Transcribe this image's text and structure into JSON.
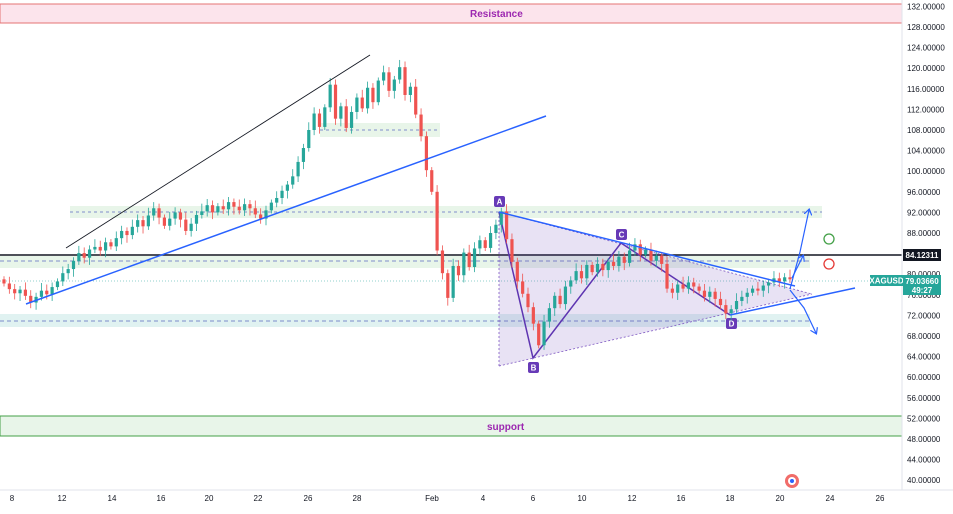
{
  "chart_data": {
    "type": "candlestick",
    "symbol": "XAGUSD",
    "current_price": "79.03660",
    "countdown": "49:27",
    "level_price": "84.12311",
    "ylim": [
      39,
      131
    ],
    "y_ticks": [
      "40.00000",
      "44.00000",
      "48.00000",
      "52.00000",
      "56.00000",
      "60.00000",
      "64.00000",
      "68.00000",
      "72.00000",
      "76.00000",
      "80.00000",
      "84.00000",
      "88.00000",
      "92.00000",
      "96.00000",
      "100.00000",
      "104.00000",
      "108.00000",
      "112.00000",
      "116.00000",
      "120.00000",
      "124.00000",
      "128.00000",
      "132.00000"
    ],
    "x_ticks": [
      "8",
      "12",
      "14",
      "16",
      "20",
      "22",
      "26",
      "28",
      "Feb",
      "4",
      "6",
      "10",
      "12",
      "16",
      "18",
      "20",
      "24",
      "26"
    ],
    "zones": {
      "resistance": "Resistance",
      "support": "support"
    },
    "pattern_points": [
      "A",
      "B",
      "C",
      "D"
    ],
    "candles": [
      {
        "o": 79.0,
        "c": 78.2
      },
      {
        "o": 78.2,
        "c": 77.1
      },
      {
        "o": 77.1,
        "c": 76.3
      },
      {
        "o": 76.3,
        "c": 77.0
      },
      {
        "o": 77.0,
        "c": 75.8
      },
      {
        "o": 75.8,
        "c": 74.5
      },
      {
        "o": 74.5,
        "c": 75.6
      },
      {
        "o": 75.6,
        "c": 76.8
      },
      {
        "o": 76.8,
        "c": 76.1
      },
      {
        "o": 76.1,
        "c": 77.5
      },
      {
        "o": 77.5,
        "c": 78.6
      },
      {
        "o": 78.6,
        "c": 80.2
      },
      {
        "o": 80.2,
        "c": 81.0
      },
      {
        "o": 81.0,
        "c": 82.6
      },
      {
        "o": 82.6,
        "c": 84.1
      },
      {
        "o": 84.1,
        "c": 83.2
      },
      {
        "o": 83.2,
        "c": 84.8
      },
      {
        "o": 84.8,
        "c": 85.3
      },
      {
        "o": 85.3,
        "c": 84.6
      },
      {
        "o": 84.6,
        "c": 86.2
      },
      {
        "o": 86.2,
        "c": 85.4
      },
      {
        "o": 85.4,
        "c": 87.0
      },
      {
        "o": 87.0,
        "c": 88.4
      },
      {
        "o": 88.4,
        "c": 87.6
      },
      {
        "o": 87.6,
        "c": 89.2
      },
      {
        "o": 89.2,
        "c": 90.5
      },
      {
        "o": 90.5,
        "c": 89.3
      },
      {
        "o": 89.3,
        "c": 91.4
      },
      {
        "o": 91.4,
        "c": 92.8
      },
      {
        "o": 92.8,
        "c": 91.0
      },
      {
        "o": 91.0,
        "c": 89.4
      },
      {
        "o": 89.4,
        "c": 90.8
      },
      {
        "o": 90.8,
        "c": 92.0
      },
      {
        "o": 92.0,
        "c": 90.6
      },
      {
        "o": 90.6,
        "c": 88.4
      },
      {
        "o": 88.4,
        "c": 89.8
      },
      {
        "o": 89.8,
        "c": 91.5
      },
      {
        "o": 91.5,
        "c": 92.2
      },
      {
        "o": 92.2,
        "c": 93.4
      },
      {
        "o": 93.4,
        "c": 92.0
      },
      {
        "o": 92.0,
        "c": 93.2
      },
      {
        "o": 93.2,
        "c": 92.6
      },
      {
        "o": 92.6,
        "c": 94.0
      },
      {
        "o": 94.0,
        "c": 93.1
      },
      {
        "o": 93.1,
        "c": 92.4
      },
      {
        "o": 92.4,
        "c": 93.6
      },
      {
        "o": 93.6,
        "c": 92.8
      },
      {
        "o": 92.8,
        "c": 91.6
      },
      {
        "o": 91.6,
        "c": 90.8
      },
      {
        "o": 90.8,
        "c": 92.4
      },
      {
        "o": 92.4,
        "c": 93.9
      },
      {
        "o": 93.9,
        "c": 94.8
      },
      {
        "o": 94.8,
        "c": 96.2
      },
      {
        "o": 96.2,
        "c": 97.4
      },
      {
        "o": 97.4,
        "c": 99.0
      },
      {
        "o": 99.0,
        "c": 101.8
      },
      {
        "o": 101.8,
        "c": 104.5
      },
      {
        "o": 104.5,
        "c": 108.0
      },
      {
        "o": 108.0,
        "c": 111.2
      },
      {
        "o": 111.2,
        "c": 108.6
      },
      {
        "o": 108.6,
        "c": 112.4
      },
      {
        "o": 112.4,
        "c": 116.8
      },
      {
        "o": 116.8,
        "c": 110.2
      },
      {
        "o": 110.2,
        "c": 112.6
      },
      {
        "o": 112.6,
        "c": 108.4
      },
      {
        "o": 108.4,
        "c": 111.5
      },
      {
        "o": 111.5,
        "c": 114.3
      },
      {
        "o": 114.3,
        "c": 112.2
      },
      {
        "o": 112.2,
        "c": 116.2
      },
      {
        "o": 116.2,
        "c": 113.4
      },
      {
        "o": 113.4,
        "c": 117.6
      },
      {
        "o": 117.6,
        "c": 119.2
      },
      {
        "o": 119.2,
        "c": 115.6
      },
      {
        "o": 115.6,
        "c": 117.8
      },
      {
        "o": 117.8,
        "c": 120.2
      },
      {
        "o": 120.2,
        "c": 114.8
      },
      {
        "o": 114.8,
        "c": 116.4
      },
      {
        "o": 116.4,
        "c": 111.0
      },
      {
        "o": 111.0,
        "c": 106.8
      },
      {
        "o": 106.8,
        "c": 100.2
      },
      {
        "o": 100.2,
        "c": 96.0
      },
      {
        "o": 96.0,
        "c": 84.6
      },
      {
        "o": 84.6,
        "c": 80.2
      },
      {
        "o": 80.2,
        "c": 75.4
      },
      {
        "o": 75.4,
        "c": 81.6
      },
      {
        "o": 81.6,
        "c": 79.8
      },
      {
        "o": 79.8,
        "c": 84.2
      },
      {
        "o": 84.2,
        "c": 81.4
      },
      {
        "o": 81.4,
        "c": 85.0
      },
      {
        "o": 85.0,
        "c": 86.6
      },
      {
        "o": 86.6,
        "c": 85.1
      },
      {
        "o": 85.1,
        "c": 88.0
      },
      {
        "o": 88.0,
        "c": 89.6
      },
      {
        "o": 89.6,
        "c": 92.2
      },
      {
        "o": 92.2,
        "c": 86.8
      },
      {
        "o": 86.8,
        "c": 82.4
      },
      {
        "o": 82.4,
        "c": 78.6
      },
      {
        "o": 78.6,
        "c": 76.2
      },
      {
        "o": 76.2,
        "c": 73.6
      },
      {
        "o": 73.6,
        "c": 70.4
      },
      {
        "o": 70.4,
        "c": 66.2
      },
      {
        "o": 66.2,
        "c": 70.8
      },
      {
        "o": 70.8,
        "c": 73.4
      },
      {
        "o": 73.4,
        "c": 75.8
      },
      {
        "o": 75.8,
        "c": 74.2
      },
      {
        "o": 74.2,
        "c": 77.6
      },
      {
        "o": 77.6,
        "c": 78.8
      },
      {
        "o": 78.8,
        "c": 80.6
      },
      {
        "o": 80.6,
        "c": 79.2
      },
      {
        "o": 79.2,
        "c": 81.8
      },
      {
        "o": 81.8,
        "c": 80.4
      },
      {
        "o": 80.4,
        "c": 82.0
      },
      {
        "o": 82.0,
        "c": 80.8
      },
      {
        "o": 80.8,
        "c": 82.4
      },
      {
        "o": 82.4,
        "c": 81.6
      },
      {
        "o": 81.6,
        "c": 83.4
      },
      {
        "o": 83.4,
        "c": 82.2
      },
      {
        "o": 82.2,
        "c": 84.6
      },
      {
        "o": 84.6,
        "c": 85.8
      },
      {
        "o": 85.8,
        "c": 83.8
      },
      {
        "o": 83.8,
        "c": 84.8
      },
      {
        "o": 84.8,
        "c": 82.6
      },
      {
        "o": 82.6,
        "c": 83.6
      },
      {
        "o": 83.6,
        "c": 82.0
      },
      {
        "o": 82.0,
        "c": 77.2
      },
      {
        "o": 77.2,
        "c": 76.4
      },
      {
        "o": 76.4,
        "c": 78.0
      },
      {
        "o": 78.0,
        "c": 77.2
      },
      {
        "o": 77.2,
        "c": 78.4
      },
      {
        "o": 78.4,
        "c": 77.6
      },
      {
        "o": 77.6,
        "c": 76.8
      },
      {
        "o": 76.8,
        "c": 75.6
      },
      {
        "o": 75.6,
        "c": 76.6
      },
      {
        "o": 76.6,
        "c": 75.2
      },
      {
        "o": 75.2,
        "c": 74.0
      },
      {
        "o": 74.0,
        "c": 72.4
      },
      {
        "o": 72.4,
        "c": 73.2
      },
      {
        "o": 73.2,
        "c": 74.8
      },
      {
        "o": 74.8,
        "c": 75.6
      },
      {
        "o": 75.6,
        "c": 76.4
      },
      {
        "o": 76.4,
        "c": 77.2
      },
      {
        "o": 77.2,
        "c": 76.8
      },
      {
        "o": 76.8,
        "c": 77.8
      },
      {
        "o": 77.8,
        "c": 78.4
      },
      {
        "o": 78.4,
        "c": 79.2
      },
      {
        "o": 79.2,
        "c": 78.6
      },
      {
        "o": 78.6,
        "c": 79.4
      },
      {
        "o": 79.4,
        "c": 79.0
      }
    ],
    "colors": {
      "up": "#26a69a",
      "down": "#ef5350",
      "trendline_blue": "#2962ff",
      "triangle_purple": "#673ab7",
      "resistance_zone": "#f8bbd0",
      "support_zone": "#c8e6c9",
      "level_zone": "#e8f5e9",
      "current_tag": "#26a69a"
    }
  }
}
